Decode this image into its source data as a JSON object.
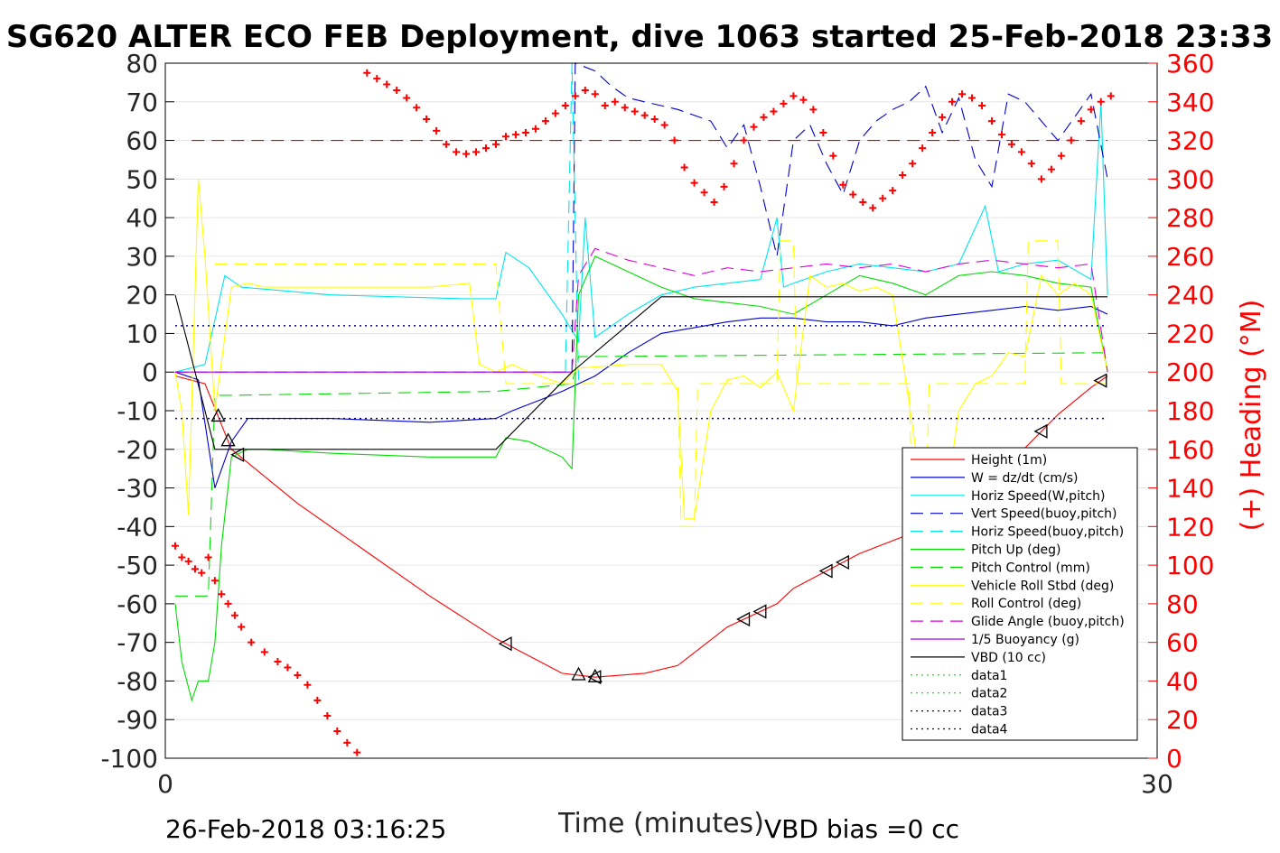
{
  "chart_data": {
    "type": "line",
    "title": "SG620 ALTER ECO FEB Deployment, dive 1063 started 25-Feb-2018 23:33",
    "xlabel": "Time (minutes)",
    "ylabel": "",
    "y2label": "(+) Heading (°M)",
    "xlim": [
      0,
      30
    ],
    "ylim": [
      -100,
      80
    ],
    "y2lim": [
      0,
      360
    ],
    "x_ticks": [
      "0",
      "30"
    ],
    "y_ticks": [
      "80",
      "70",
      "60",
      "50",
      "40",
      "30",
      "20",
      "10",
      "0",
      "-10",
      "-20",
      "-30",
      "-40",
      "-50",
      "-60",
      "-70",
      "-80",
      "-90",
      "-100"
    ],
    "y2_ticks": [
      "360",
      "340",
      "320",
      "300",
      "280",
      "260",
      "240",
      "220",
      "200",
      "180",
      "160",
      "140",
      "120",
      "100",
      "80",
      "60",
      "40",
      "20",
      "0"
    ],
    "grid": true,
    "legend_position": "lower-right",
    "footer_left": "26-Feb-2018 03:16:25",
    "footer_right": "VBD bias =0 cc",
    "colors": {
      "height": "#ff0000",
      "w": "#0000cc",
      "horiz": "#00e5ee",
      "pitch": "#00dd00",
      "roll": "#ffff00",
      "glide": "#dd00dd",
      "vbd": "#000000",
      "heading": "#ff0000"
    },
    "series": [
      {
        "name": "Height (1m)",
        "color": "#ff0000",
        "style": "solid",
        "x": [
          0.3,
          1.2,
          2.0,
          4.0,
          6.0,
          8.0,
          10.0,
          12.0,
          13.0,
          14.5,
          15.5,
          17.0,
          18.5,
          19.0,
          21.0,
          22.5,
          24.0,
          25.5,
          27.0,
          28.0,
          28.5
        ],
        "y": [
          -1,
          -3,
          -20,
          -34,
          -46,
          -58,
          -69,
          -78,
          -79,
          -78,
          -76,
          -66,
          -60,
          -56,
          -47,
          -42,
          -31,
          -24,
          -11,
          -4,
          -1
        ]
      },
      {
        "name": "W = dz/dt (cm/s)",
        "color": "#0000cc",
        "style": "solid",
        "x": [
          0.3,
          1.0,
          1.5,
          2.0,
          2.5,
          3.0,
          5.0,
          8.0,
          10.0,
          10.5,
          12.0,
          13.0,
          14.0,
          15.0,
          17.0,
          18.0,
          19.0,
          20.0,
          21.0,
          22.0,
          23.0,
          24.0,
          25.0,
          26.0,
          27.0,
          28.0,
          28.5
        ],
        "y": [
          0,
          -2,
          -30,
          -18,
          -12,
          -12,
          -12,
          -13,
          -12,
          -10,
          -5,
          -1,
          5,
          10,
          13,
          14,
          14,
          13,
          13,
          12,
          14,
          15,
          16,
          17,
          16,
          17,
          15
        ]
      },
      {
        "name": "Horiz Speed(W,pitch)",
        "color": "#00e5ee",
        "style": "solid",
        "x": [
          0.3,
          1.2,
          1.8,
          2.3,
          5,
          9,
          10.0,
          10.3,
          11.0,
          12.0,
          12.5,
          12.7,
          13.0,
          13.5,
          14.0,
          15.0,
          16.0,
          17.0,
          18.0,
          18.5,
          18.7,
          19.0,
          20.0,
          21.0,
          22.0,
          23.0,
          24.0,
          24.8,
          25.2,
          26.0,
          27.0,
          28.0,
          28.3,
          28.5
        ],
        "y": [
          0,
          2,
          25,
          22,
          20,
          19,
          19,
          31,
          27,
          15,
          8,
          40,
          9,
          12,
          15,
          20,
          22,
          23,
          24,
          40,
          22,
          23,
          26,
          28,
          27,
          26,
          28,
          43,
          26,
          28,
          29,
          24,
          70,
          20
        ]
      },
      {
        "name": "Vert Speed(buoy,pitch)",
        "color": "#0000cc",
        "style": "dash",
        "x": [
          12.3,
          12.4,
          13.0,
          13.5,
          14.0,
          14.5,
          15.5,
          16.5,
          17.0,
          17.5,
          18.0,
          18.5,
          19.0,
          19.5,
          20.0,
          20.5,
          21.0,
          21.5,
          22.0,
          22.5,
          23.0,
          23.5,
          24.0,
          24.5,
          25.0,
          25.5,
          26.0,
          27.0,
          28.0,
          28.5
        ],
        "y": [
          0,
          80,
          78,
          74,
          71,
          70,
          68,
          65,
          58,
          64,
          48,
          30,
          60,
          64,
          54,
          46,
          60,
          65,
          68,
          70,
          74,
          62,
          71,
          55,
          48,
          72,
          70,
          60,
          72,
          50
        ]
      },
      {
        "name": "Horiz Speed(buoy,pitch)",
        "color": "#00e5ee",
        "style": "dash",
        "x": [
          12.1,
          12.3,
          12.5
        ],
        "y": [
          0,
          80,
          -2
        ]
      },
      {
        "name": "Pitch Up (deg)",
        "color": "#00dd00",
        "style": "solid",
        "x": [
          0.3,
          0.5,
          0.8,
          1.0,
          1.3,
          1.5,
          1.7,
          2.0,
          2.5,
          3.0,
          5,
          8,
          10.0,
          10.3,
          11.0,
          12.0,
          12.3,
          12.5,
          13.0,
          15.0,
          16.0,
          17.0,
          18.0,
          19.0,
          20.0,
          21.0,
          22.0,
          23.0,
          24.0,
          25.0,
          26.0,
          27.0,
          28.0,
          28.5
        ],
        "y": [
          -60,
          -75,
          -85,
          -80,
          -80,
          -70,
          -45,
          -22,
          -20,
          -20,
          -21,
          -22,
          -22,
          -17,
          -18,
          -22,
          -25,
          20,
          30,
          22,
          19,
          18,
          17,
          15,
          20,
          25,
          23,
          20,
          25,
          26,
          25,
          23,
          22,
          0
        ]
      },
      {
        "name": "Pitch Control (mm)",
        "color": "#00dd00",
        "style": "dash",
        "x": [
          0.3,
          1.0,
          1.3,
          1.5,
          2.0,
          10.0,
          12.3,
          12.5,
          28.5
        ],
        "y": [
          -58,
          -58,
          -58,
          -6,
          -6,
          -5,
          -3,
          4,
          5
        ]
      },
      {
        "name": "Vehicle Roll Stbd (deg)",
        "color": "#ffff00",
        "style": "solid",
        "x": [
          0.3,
          0.5,
          0.7,
          1.0,
          1.2,
          1.5,
          2.0,
          2.5,
          3.0,
          5,
          8,
          9.2,
          9.5,
          10.0,
          10.5,
          11.0,
          12.0,
          12.5,
          14.0,
          15.0,
          15.5,
          15.7,
          16.0,
          16.5,
          17.0,
          17.5,
          18.0,
          18.5,
          19.0,
          19.5,
          20.0,
          20.5,
          21.0,
          21.5,
          22.0,
          22.5,
          23.0,
          23.5,
          24.0,
          24.5,
          25.0,
          25.5,
          26.0,
          26.5,
          27.0,
          27.5,
          28.0,
          28.5
        ],
        "y": [
          0,
          -10,
          -37,
          50,
          30,
          -10,
          22,
          23,
          22,
          22,
          22,
          23,
          2,
          0,
          2,
          0,
          -3,
          1,
          2,
          2,
          -5,
          -38,
          -38,
          -10,
          -2,
          -1,
          -4,
          0,
          -10,
          25,
          22,
          23,
          21,
          22,
          20,
          -8,
          -38,
          -40,
          -10,
          -3,
          -1,
          5,
          4,
          25,
          20,
          23,
          20,
          0
        ]
      },
      {
        "name": "Roll Control (deg)",
        "color": "#ffff00",
        "style": "dash",
        "x": [
          1.5,
          2.0,
          10.0,
          10.3,
          12.0,
          15.5,
          15.6,
          16.0,
          16.1,
          18.5,
          18.6,
          19.0,
          19.1,
          22.5,
          22.6,
          23.0,
          23.1,
          26.0,
          26.1,
          27.0,
          27.1,
          28.5
        ],
        "y": [
          28,
          28,
          28,
          -3,
          -3,
          -3,
          -40,
          -40,
          -3,
          -3,
          34,
          34,
          -3,
          -3,
          -40,
          -40,
          -3,
          -3,
          34,
          34,
          -3,
          -3
        ]
      },
      {
        "name": "Glide Angle (buoy,pitch)",
        "color": "#dd00dd",
        "style": "dash",
        "x": [
          0.3,
          12.3,
          12.5,
          13.0,
          14.0,
          15.0,
          16.0,
          17.0,
          18.0,
          19.0,
          20.0,
          21.0,
          22.0,
          23.0,
          24.0,
          25.0,
          26.0,
          27.0,
          28.0,
          28.5
        ],
        "y": [
          0,
          0,
          25,
          32,
          29,
          27,
          25,
          27,
          26,
          27,
          28,
          27,
          28,
          26,
          28,
          29,
          28,
          27,
          28,
          0
        ]
      },
      {
        "name": "1/5 Buoyancy (g)",
        "color": "#aa00ee",
        "style": "solid",
        "x": [
          0.3,
          12.3
        ],
        "y": [
          0,
          0
        ]
      },
      {
        "name": "VBD (10 cc)",
        "color": "#000000",
        "style": "solid",
        "x": [
          0.3,
          1.5,
          10.0,
          12.3,
          15.0,
          28.5
        ],
        "y": [
          20,
          -20,
          -20,
          0,
          19.5,
          19.5
        ]
      },
      {
        "name": "data1",
        "color": "#00dd00",
        "style": "dot",
        "x": [],
        "y": []
      },
      {
        "name": "data2",
        "color": "#00dd00",
        "style": "dot",
        "x": [],
        "y": []
      },
      {
        "name": "data3",
        "color": "#000088",
        "style": "dot",
        "x": [
          0.3,
          28.5
        ],
        "y": [
          12,
          12
        ]
      },
      {
        "name": "data4",
        "color": "#000088",
        "style": "dot",
        "x": [
          0.3,
          28.5
        ],
        "y": [
          -12,
          -12
        ]
      }
    ],
    "reference_lines": [
      {
        "axis": "y2",
        "value": 320,
        "color": "#dd0000",
        "style": "dash",
        "x_range": [
          0.8,
          28.5
        ]
      }
    ],
    "heading_series": {
      "name": "Heading",
      "color": "#ff0000",
      "marker": "+",
      "axis": "y2",
      "x": [
        0.3,
        0.5,
        0.7,
        0.9,
        1.1,
        1.3,
        1.5,
        1.7,
        1.9,
        2.1,
        2.3,
        2.6,
        3.0,
        3.4,
        3.7,
        4.0,
        4.3,
        4.6,
        4.9,
        5.2,
        5.5,
        5.8,
        6.1,
        6.4,
        6.7,
        7.0,
        7.3,
        7.6,
        7.9,
        8.2,
        8.5,
        8.8,
        9.1,
        9.4,
        9.7,
        10.0,
        10.3,
        10.6,
        10.9,
        11.2,
        11.5,
        11.8,
        12.1,
        12.4,
        12.7,
        13.0,
        13.3,
        13.6,
        13.9,
        14.2,
        14.5,
        14.8,
        15.1,
        15.4,
        15.7,
        16.0,
        16.3,
        16.6,
        16.9,
        17.2,
        17.5,
        17.8,
        18.1,
        18.4,
        18.7,
        19.0,
        19.3,
        19.6,
        19.9,
        20.2,
        20.5,
        20.8,
        21.1,
        21.4,
        21.7,
        22.0,
        22.3,
        22.6,
        22.9,
        23.2,
        23.5,
        23.8,
        24.1,
        24.4,
        24.7,
        25.0,
        25.3,
        25.6,
        25.9,
        26.2,
        26.5,
        26.8,
        27.1,
        27.4,
        27.7,
        28.0,
        28.3,
        28.6
      ],
      "y": [
        110,
        104,
        102,
        98,
        96,
        104,
        92,
        85,
        80,
        74,
        68,
        60,
        55,
        50,
        47,
        43,
        38,
        30,
        22,
        14,
        8,
        3,
        355,
        352,
        349,
        346,
        342,
        337,
        331,
        325,
        318,
        314,
        313,
        314,
        316,
        318,
        322,
        323,
        324,
        326,
        330,
        334,
        338,
        343,
        346,
        344,
        338,
        340,
        337,
        335,
        333,
        331,
        328,
        320,
        306,
        298,
        293,
        288,
        296,
        308,
        320,
        327,
        332,
        335,
        339,
        343,
        341,
        336,
        324,
        312,
        297,
        292,
        288,
        285,
        290,
        294,
        302,
        308,
        316,
        324,
        332,
        340,
        344,
        342,
        338,
        330,
        323,
        318,
        314,
        308,
        300,
        305,
        312,
        320,
        330,
        336,
        340,
        343
      ]
    },
    "annotations": [
      {
        "type": "triangle-left-markers",
        "x": [
          2.2,
          10.3,
          13.0,
          17.5,
          18.0,
          20.0,
          20.5,
          22.5,
          23.0,
          25.0,
          26.5,
          28.3
        ]
      },
      {
        "type": "triangle-up-markers",
        "x": [
          1.6,
          1.9,
          12.5,
          13.0
        ]
      }
    ]
  }
}
